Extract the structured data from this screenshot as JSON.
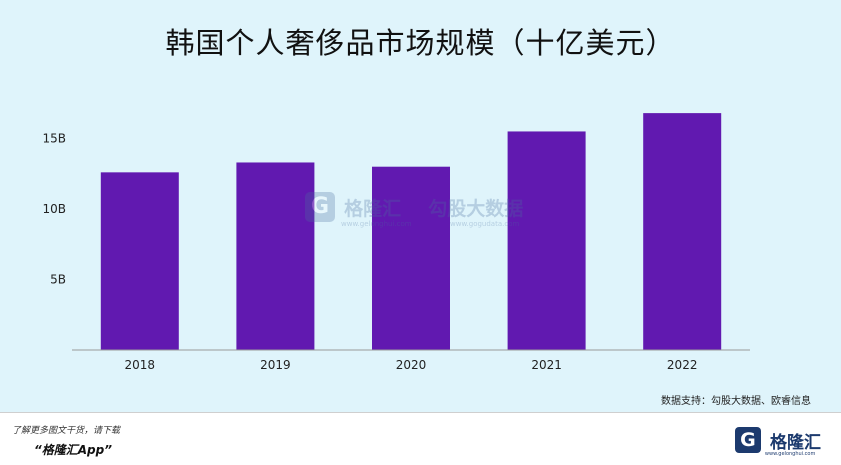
{
  "chart_data": {
    "type": "bar",
    "title": "韩国个人奢侈品市场规模（十亿美元）",
    "categories": [
      "2018",
      "2019",
      "2020",
      "2021",
      "2022"
    ],
    "values": [
      12.6,
      13.3,
      13.0,
      15.5,
      16.8
    ],
    "yticks": [
      {
        "value": 5,
        "label": "5B"
      },
      {
        "value": 10,
        "label": "10B"
      },
      {
        "value": 15,
        "label": "15B"
      }
    ],
    "ylim": [
      0,
      17.5
    ],
    "xlabel": "",
    "ylabel": "",
    "grid": false,
    "legend": "none",
    "bar_color": "#6119b0"
  },
  "source": "数据支持：勾股大数据、欧睿信息",
  "watermark": {
    "brand": "格隆汇",
    "brand2": "勾股大数据",
    "url1": "www.gelonghui.com",
    "url2": "www.gogudata.com"
  },
  "footer": {
    "hint": "了解更多图文干货，请下载",
    "app": "“格隆汇App”",
    "logo_letter": "G",
    "logo_name": "格隆汇",
    "logo_url": "www.gelonghui.com"
  },
  "colors": {
    "background": "#dff4fb",
    "bar": "#6119b0",
    "axis": "#9a9a9a"
  }
}
